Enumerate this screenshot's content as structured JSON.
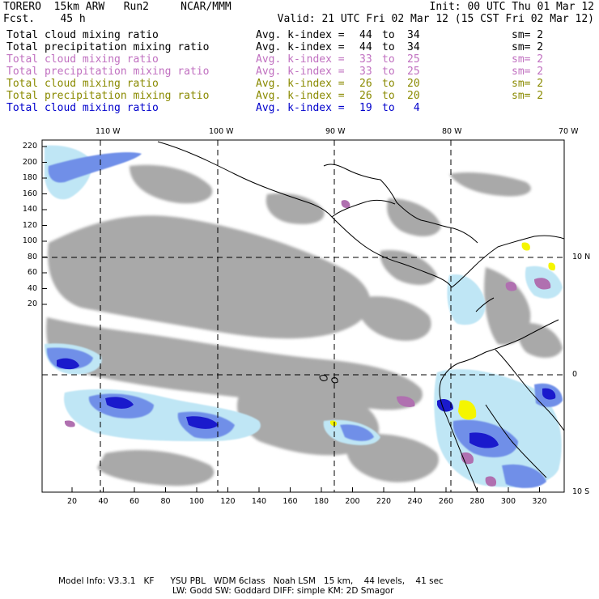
{
  "header": {
    "model": "TORERO  15km ARW   Run2     NCAR/MMM",
    "init": "Init: 00 UTC Thu 01 Mar 12",
    "fcst": "Fcst.    45 h",
    "valid": "Valid: 21 UTC Fri 02 Mar 12 (15 CST Fri 02 Mar 12)"
  },
  "legend": [
    {
      "field": "Total cloud mixing ratio",
      "avg": "Avg. k-index =",
      "k1": "44",
      "to": "to",
      "k2": "34",
      "sm": "sm= 2",
      "color": "#000000"
    },
    {
      "field": "Total precipitation mixing ratio",
      "avg": "Avg. k-index =",
      "k1": "44",
      "to": "to",
      "k2": "34",
      "sm": "sm= 2",
      "color": "#000000"
    },
    {
      "field": "Total cloud mixing ratio",
      "avg": "Avg. k-index =",
      "k1": "33",
      "to": "to",
      "k2": "25",
      "sm": "sm= 2",
      "color": "#c070c0"
    },
    {
      "field": "Total precipitation mixing ratio",
      "avg": "Avg. k-index =",
      "k1": "33",
      "to": "to",
      "k2": "25",
      "sm": "sm= 2",
      "color": "#c070c0"
    },
    {
      "field": "Total cloud mixing ratio",
      "avg": "Avg. k-index =",
      "k1": "26",
      "to": "to",
      "k2": "20",
      "sm": "sm= 2",
      "color": "#8a8a00"
    },
    {
      "field": "Total precipitation mixing ratio",
      "avg": "Avg. k-index =",
      "k1": "26",
      "to": "to",
      "k2": "20",
      "sm": "sm= 2",
      "color": "#8a8a00"
    },
    {
      "field": "Total cloud mixing ratio",
      "avg": "Avg. k-index =",
      "k1": "19",
      "to": "to",
      "k2": " 4",
      "sm": "",
      "color": "#0000cc"
    }
  ],
  "map": {
    "lon_labels": [
      "110 W",
      "100 W",
      "90 W",
      "80 W",
      "70 W"
    ],
    "lat_labels": [
      "10 N",
      "0",
      "10 S"
    ],
    "y_ticks": [
      "220",
      "200",
      "180",
      "160",
      "140",
      "120",
      "100",
      "80",
      "60",
      "40",
      "20"
    ],
    "x_ticks": [
      "20",
      "40",
      "60",
      "80",
      "100",
      "120",
      "140",
      "160",
      "180",
      "200",
      "220",
      "240",
      "260",
      "280",
      "300",
      "320"
    ],
    "colors": {
      "gray_cloud": "#a9a9a9",
      "light_blue": "#bfe6f5",
      "mid_blue": "#6f8fe8",
      "dark_blue": "#1a1acc",
      "purple": "#b070b0",
      "yellow": "#f5f500"
    }
  },
  "footer": {
    "line1": "Model Info: V3.3.1   KF      YSU PBL   WDM 6class   Noah LSM   15 km,    44 levels,    41 sec",
    "line2": "LW: Godd SW: Goddard DIFF: simple KM: 2D Smagor"
  }
}
